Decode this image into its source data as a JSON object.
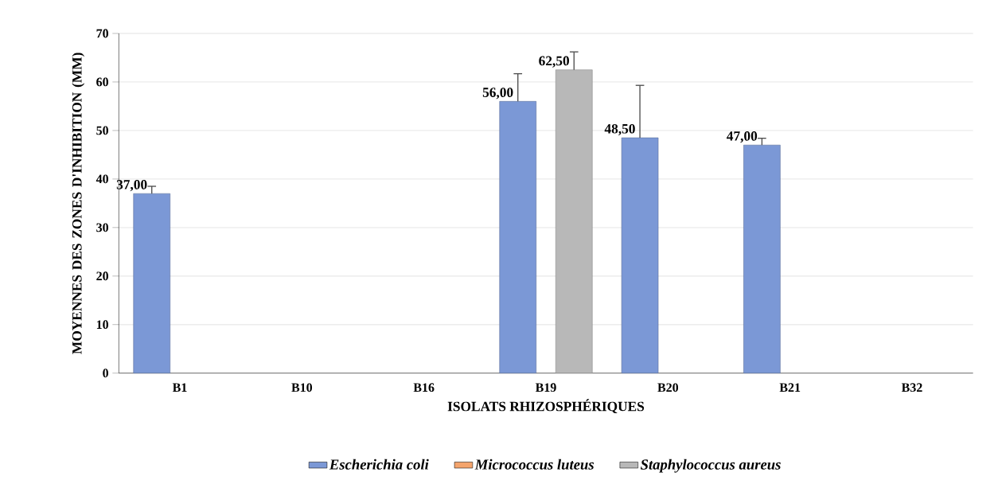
{
  "chart_data": {
    "type": "bar",
    "xlabel": "ISOLATS RHIZOSPHÉRIQUES",
    "ylabel": "MOYENNES DES ZONES D'INHIBITION (MM)",
    "categories": [
      "B1",
      "B10",
      "B16",
      "B19",
      "B20",
      "B21",
      "B32"
    ],
    "series": [
      {
        "name": "Escherichia coli",
        "color": "#7b98d6",
        "values": [
          37,
          null,
          null,
          56,
          48.5,
          47,
          null
        ],
        "errors": [
          1.5,
          null,
          null,
          5.7,
          10.8,
          1.4,
          null
        ],
        "value_labels": [
          "37,00",
          null,
          null,
          "56,00",
          "48,50",
          "47,00",
          null
        ]
      },
      {
        "name": "Micrococcus luteus",
        "color": "#f4a46c",
        "values": [
          null,
          null,
          null,
          null,
          null,
          null,
          null
        ]
      },
      {
        "name": "Staphylococcus aureus",
        "color": "#b8b8b8",
        "values": [
          null,
          null,
          null,
          62.5,
          null,
          null,
          null
        ],
        "errors": [
          null,
          null,
          null,
          3.7,
          null,
          null,
          null
        ],
        "value_labels": [
          null,
          null,
          null,
          "62,50",
          null,
          null,
          null
        ]
      }
    ],
    "ylim": [
      0,
      70
    ],
    "yticks": [
      0,
      10,
      20,
      30,
      40,
      50,
      60,
      70
    ],
    "grid": "y",
    "legend": "bottom"
  }
}
